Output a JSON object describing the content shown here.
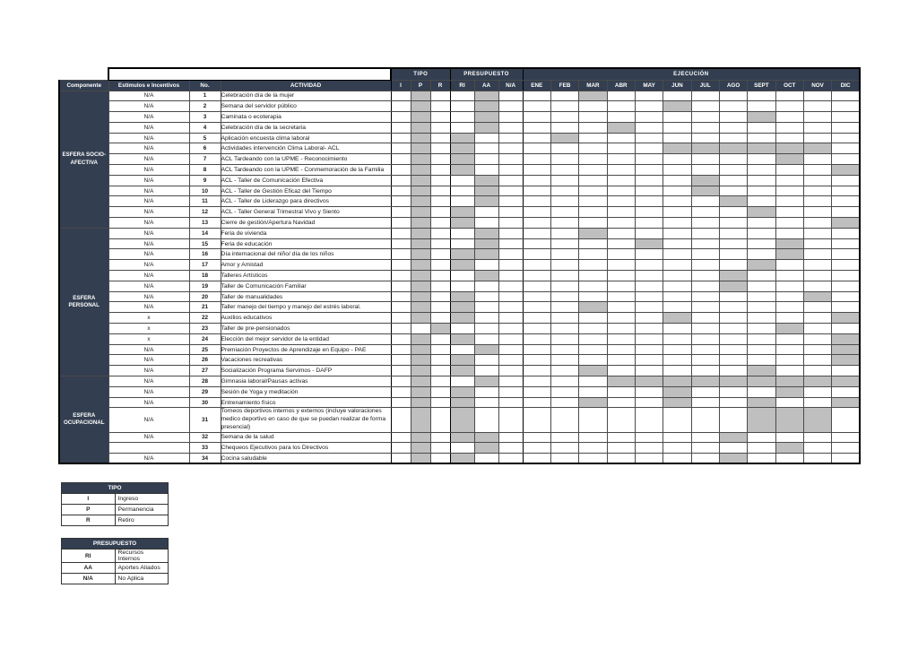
{
  "colors": {
    "header_bg": "#333F50",
    "mark_fill": "#BFBFBF"
  },
  "table": {
    "header": {
      "componente": "Componente",
      "estimulos": "Estímulos e Incentivos",
      "no": "No.",
      "actividad": "ACTIVIDAD",
      "groups": {
        "tipo": "TIPO",
        "presupuesto": "PRESUPUESTO",
        "ejecucion": "EJECUCIÓN"
      },
      "tipo_cols": [
        "I",
        "P",
        "R"
      ],
      "presupuesto_cols": [
        "RI",
        "AA",
        "N/A"
      ],
      "months": [
        "ENE",
        "FEB",
        "MAR",
        "ABR",
        "MAY",
        "JUN",
        "JUL",
        "AGO",
        "SEPT",
        "OCT",
        "NOV",
        "DIC"
      ]
    },
    "sections": [
      {
        "name": "ESFERA SOCIO-AFECTIVA",
        "rows": [
          {
            "estimulos": "N/A",
            "no": "1",
            "actividad": "Celebración día de la mujer",
            "tipo": [
              "P"
            ],
            "presupuesto": [
              "AA"
            ],
            "months": [
              "MAR"
            ]
          },
          {
            "estimulos": "N/A",
            "no": "2",
            "actividad": "Semana del servidor público",
            "tipo": [
              "P"
            ],
            "presupuesto": [
              "AA"
            ],
            "months": [
              "JUN"
            ]
          },
          {
            "estimulos": "N/A",
            "no": "3",
            "actividad": "Caminata o ecoterapia",
            "tipo": [
              "P"
            ],
            "presupuesto": [
              "AA"
            ],
            "months": [
              "SEPT"
            ]
          },
          {
            "estimulos": "N/A",
            "no": "4",
            "actividad": "Celebración día de la secretaria",
            "tipo": [
              "P"
            ],
            "presupuesto": [
              "AA"
            ],
            "months": [
              "ABR"
            ]
          },
          {
            "estimulos": "N/A",
            "no": "5",
            "actividad": "Aplicación encuesta clima laboral",
            "tipo": [
              "P"
            ],
            "presupuesto": [
              "RI"
            ],
            "months": [
              "FEB"
            ]
          },
          {
            "estimulos": "N/A",
            "no": "6",
            "actividad": "Actividades intervención Clima Laboral- ACL",
            "tipo": [
              "P"
            ],
            "presupuesto": [
              "RI"
            ],
            "months": [
              "JUN",
              "JUL",
              "AGO",
              "SEPT",
              "OCT",
              "NOV"
            ]
          },
          {
            "estimulos": "N/A",
            "no": "7",
            "actividad": "ACL Tardeando con la UPME - Reconocimiento",
            "tipo": [
              "P"
            ],
            "presupuesto": [
              "RI"
            ],
            "months": [
              "OCT"
            ]
          },
          {
            "estimulos": "N/A",
            "no": "8",
            "actividad": "ACL Tardeando con la UPME - Conmemoración de la Familia",
            "tipo": [
              "P"
            ],
            "presupuesto": [
              "RI"
            ],
            "months": [
              "DIC"
            ]
          },
          {
            "estimulos": "N/A",
            "no": "9",
            "actividad": "ACL - Taller de Comunicación Efectiva",
            "tipo": [
              "P"
            ],
            "presupuesto": [
              "AA"
            ],
            "months": [
              "JUL"
            ]
          },
          {
            "estimulos": "N/A",
            "no": "10",
            "actividad": "ACL - Taller de Gestión Eficaz del Tiempo",
            "tipo": [
              "P"
            ],
            "presupuesto": [
              "AA"
            ],
            "months": [
              "JUL"
            ]
          },
          {
            "estimulos": "N/A",
            "no": "11",
            "actividad": "ACL - Taller de Liderazgo para directivos",
            "tipo": [
              "P"
            ],
            "presupuesto": [
              "AA"
            ],
            "months": [
              "AGO"
            ]
          },
          {
            "estimulos": "N/A",
            "no": "12",
            "actividad": "ACL - Taller General Trimestral Vivo y Siento",
            "tipo": [
              "P"
            ],
            "presupuesto": [
              "RI"
            ],
            "months": [
              "SEPT"
            ]
          },
          {
            "estimulos": "N/A",
            "no": "13",
            "actividad": "Cierre de gestión/Apertura Navidad",
            "tipo": [
              "P"
            ],
            "presupuesto": [
              "RI"
            ],
            "months": [
              "DIC"
            ]
          }
        ]
      },
      {
        "name": "ESFERA PERSONAL",
        "rows": [
          {
            "estimulos": "N/A",
            "no": "14",
            "actividad": "Feria de vivienda",
            "tipo": [
              "P"
            ],
            "presupuesto": [
              "AA"
            ],
            "months": [
              "MAR"
            ]
          },
          {
            "estimulos": "N/A",
            "no": "15",
            "actividad": "Feria de educación",
            "tipo": [
              "P"
            ],
            "presupuesto": [
              "AA"
            ],
            "months": [
              "MAY",
              "OCT"
            ]
          },
          {
            "estimulos": "N/A",
            "no": "16",
            "actividad": "Día internacional del niño/ día de los niños",
            "tipo": [
              "P"
            ],
            "presupuesto": [
              "RI",
              "AA"
            ],
            "months": [
              "OCT"
            ]
          },
          {
            "estimulos": "N/A",
            "no": "17",
            "actividad": "Amor y Amistad",
            "tipo": [
              "P"
            ],
            "presupuesto": [
              "RI"
            ],
            "months": [
              "SEPT"
            ]
          },
          {
            "estimulos": "N/A",
            "no": "18",
            "actividad": "Talleres Artísticos",
            "tipo": [
              "P"
            ],
            "presupuesto": [
              "AA"
            ],
            "months": [
              "AGO"
            ]
          },
          {
            "estimulos": "N/A",
            "no": "19",
            "actividad": "Taller de Comunicación Familiar",
            "tipo": [
              "P"
            ],
            "presupuesto": [],
            "months": [
              "AGO"
            ]
          },
          {
            "estimulos": "N/A",
            "no": "20",
            "actividad": "Taller de manualidades",
            "tipo": [
              "P"
            ],
            "presupuesto": [
              "RI"
            ],
            "months": [
              "NOV"
            ]
          },
          {
            "estimulos": "N/A",
            "no": "21",
            "actividad": "Taller manejo del tiempo y manejo del estrés laboral.",
            "tipo": [
              "P"
            ],
            "presupuesto": [
              "RI"
            ],
            "months": [
              "MAR"
            ]
          },
          {
            "estimulos": "x",
            "no": "22",
            "actividad": "Auxilios educativos",
            "tipo": [
              "P"
            ],
            "presupuesto": [
              "RI"
            ],
            "months": [
              "JUN",
              "DIC"
            ]
          },
          {
            "estimulos": "x",
            "no": "23",
            "actividad": "Taller de pre-pensionados",
            "tipo": [
              "R"
            ],
            "presupuesto": [],
            "months": [
              "OCT"
            ]
          },
          {
            "estimulos": "x",
            "no": "24",
            "actividad": "Elección del mejor servidor de la entidad",
            "tipo": [
              "P"
            ],
            "presupuesto": [
              "RI"
            ],
            "months": [
              "DIC"
            ]
          },
          {
            "estimulos": "N/A",
            "no": "25",
            "actividad": "Premiación Proyectos de Aprendizaje en Equipo - PAE",
            "tipo": [
              "P"
            ],
            "presupuesto": [
              "AA"
            ],
            "months": [
              "DIC"
            ]
          },
          {
            "estimulos": "N/A",
            "no": "26",
            "actividad": "Vacaciones recreativas",
            "tipo": [
              "P"
            ],
            "presupuesto": [
              "RI"
            ],
            "months": [
              "DIC"
            ]
          },
          {
            "estimulos": "N/A",
            "no": "27",
            "actividad": "Socialización Programa Servimos - DAFP",
            "tipo": [
              "P"
            ],
            "presupuesto": [
              "RI"
            ],
            "months": [
              "MAR",
              "SEPT"
            ]
          }
        ]
      },
      {
        "name": "ESFERA OCUPACIONAL",
        "rows": [
          {
            "estimulos": "N/A",
            "no": "28",
            "actividad": "Gimnasia laboral/Pausas activas",
            "tipo": [
              "P"
            ],
            "presupuesto": [
              "AA"
            ],
            "months": [
              "ABR",
              "MAY",
              "JUN",
              "JUL",
              "AGO",
              "SEPT",
              "OCT",
              "NOV",
              "DIC"
            ]
          },
          {
            "estimulos": "N/A",
            "no": "29",
            "actividad": "Sesión de Yoga y meditación",
            "tipo": [
              "P"
            ],
            "presupuesto": [
              "RI"
            ],
            "months": [
              "JUN",
              "OCT"
            ]
          },
          {
            "estimulos": "N/A",
            "no": "30",
            "actividad": "Entrenamiento físico",
            "tipo": [
              "P"
            ],
            "presupuesto": [
              "RI"
            ],
            "months": [
              "MAR",
              "JUN",
              "SEPT",
              "DIC"
            ]
          },
          {
            "estimulos": "N/A",
            "no": "31",
            "actividad": "Torneos deportivos internos y externos (incluye valoraciones medico deportivo en caso de que se puedan realizar de forma presencial)",
            "tipo": [
              "P"
            ],
            "presupuesto": [
              "RI"
            ],
            "months": [
              "SEPT",
              "OCT",
              "NOV"
            ]
          },
          {
            "estimulos": "N/A",
            "no": "32",
            "actividad": "Semana de la salud",
            "tipo": [
              "P"
            ],
            "presupuesto": [
              "RI",
              "AA"
            ],
            "months": [
              "AGO"
            ]
          },
          {
            "estimulos": "",
            "no": "33",
            "actividad": "Chequeos Ejecutivos para los Directivos",
            "tipo": [
              "P"
            ],
            "presupuesto": [
              "AA"
            ],
            "months": [
              "OCT"
            ]
          },
          {
            "estimulos": "N/A",
            "no": "34",
            "actividad": "Cocina saludable",
            "tipo": [
              "P"
            ],
            "presupuesto": [
              "RI"
            ],
            "months": [
              "AGO"
            ]
          }
        ]
      }
    ]
  },
  "legends": [
    {
      "title": "TIPO",
      "entries": [
        {
          "abbr": "I",
          "label": "Ingreso"
        },
        {
          "abbr": "P",
          "label": "Permanencia"
        },
        {
          "abbr": "R",
          "label": "Retiro"
        }
      ]
    },
    {
      "title": "PRESUPUESTO",
      "entries": [
        {
          "abbr": "RI",
          "label": "Recursos Internos"
        },
        {
          "abbr": "AA",
          "label": "Aportes Aliados"
        },
        {
          "abbr": "N/A",
          "label": "No Aplica"
        }
      ]
    }
  ]
}
